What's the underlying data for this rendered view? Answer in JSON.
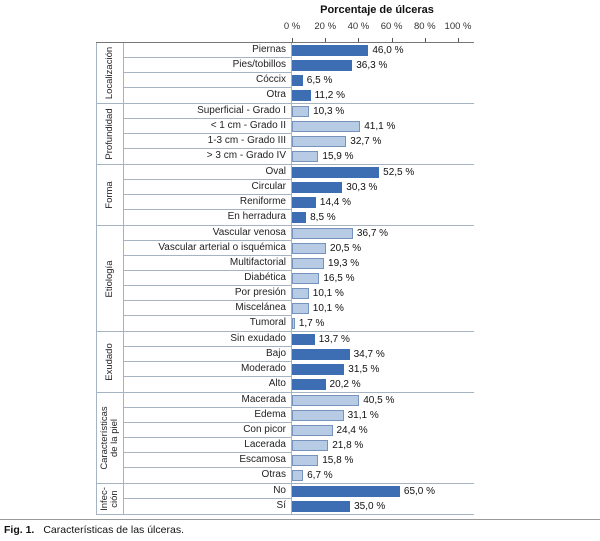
{
  "figure": {
    "caption_prefix": "Fig. 1.",
    "caption_text": "Características de las úlceras."
  },
  "chart_data": {
    "type": "bar",
    "orientation": "horizontal",
    "title": "Porcentaje de úlceras",
    "xlabel": "Porcentaje de úlceras",
    "xlim": [
      0,
      100
    ],
    "grid": false,
    "legend_position": "none",
    "x_ticks": [
      {
        "value": 0,
        "label": "0 %"
      },
      {
        "value": 20,
        "label": "20 %"
      },
      {
        "value": 40,
        "label": "40 %"
      },
      {
        "value": 60,
        "label": "60 %"
      },
      {
        "value": 80,
        "label": "80 %"
      },
      {
        "value": 100,
        "label": "100 %"
      }
    ],
    "colors": {
      "bar_dark": "#3d6eb4",
      "bar_light": "#b7cbe5",
      "bar_light_border": "#7593bd",
      "grid_border": "#a6b3c0"
    },
    "groups": [
      {
        "name": "Localización",
        "name_lines": [
          "Localización"
        ],
        "shade": "dark",
        "items": [
          {
            "label": "Piernas",
            "value": 46.0,
            "value_label": "46,0 %"
          },
          {
            "label": "Pies/tobillos",
            "value": 36.3,
            "value_label": "36,3 %"
          },
          {
            "label": "Cóccix",
            "value": 6.5,
            "value_label": "6,5 %"
          },
          {
            "label": "Otra",
            "value": 11.2,
            "value_label": "11,2 %"
          }
        ]
      },
      {
        "name": "Profundidad",
        "name_lines": [
          "Profundidad"
        ],
        "shade": "light",
        "items": [
          {
            "label": "Superficial - Grado I",
            "value": 10.3,
            "value_label": "10,3 %"
          },
          {
            "label": "< 1 cm - Grado II",
            "value": 41.1,
            "value_label": "41,1 %"
          },
          {
            "label": "1-3 cm - Grado III",
            "value": 32.7,
            "value_label": "32,7 %"
          },
          {
            "label": "> 3 cm - Grado IV",
            "value": 15.9,
            "value_label": "15,9 %"
          }
        ]
      },
      {
        "name": "Forma",
        "name_lines": [
          "Forma"
        ],
        "shade": "dark",
        "items": [
          {
            "label": "Oval",
            "value": 52.5,
            "value_label": "52,5 %"
          },
          {
            "label": "Circular",
            "value": 30.3,
            "value_label": "30,3 %"
          },
          {
            "label": "Reniforme",
            "value": 14.4,
            "value_label": "14,4 %"
          },
          {
            "label": "En herradura",
            "value": 8.5,
            "value_label": "8,5 %"
          }
        ]
      },
      {
        "name": "Etiología",
        "name_lines": [
          "Etiología"
        ],
        "shade": "light",
        "items": [
          {
            "label": "Vascular venosa",
            "value": 36.7,
            "value_label": "36,7 %"
          },
          {
            "label": "Vascular arterial o isquémica",
            "value": 20.5,
            "value_label": "20,5 %"
          },
          {
            "label": "Multifactorial",
            "value": 19.3,
            "value_label": "19,3 %"
          },
          {
            "label": "Diabética",
            "value": 16.5,
            "value_label": "16,5 %"
          },
          {
            "label": "Por presión",
            "value": 10.1,
            "value_label": "10,1 %"
          },
          {
            "label": "Miscelánea",
            "value": 10.1,
            "value_label": "10,1 %"
          },
          {
            "label": "Tumoral",
            "value": 1.7,
            "value_label": "1,7 %"
          }
        ]
      },
      {
        "name": "Exudado",
        "name_lines": [
          "Exudado"
        ],
        "shade": "dark",
        "items": [
          {
            "label": "Sin exudado",
            "value": 13.7,
            "value_label": "13,7 %"
          },
          {
            "label": "Bajo",
            "value": 34.7,
            "value_label": "34,7 %"
          },
          {
            "label": "Moderado",
            "value": 31.5,
            "value_label": "31,5 %"
          },
          {
            "label": "Alto",
            "value": 20.2,
            "value_label": "20,2 %"
          }
        ]
      },
      {
        "name": "Características de la piel",
        "name_lines": [
          "Características",
          "de la piel"
        ],
        "shade": "light",
        "items": [
          {
            "label": "Macerada",
            "value": 40.5,
            "value_label": "40,5 %"
          },
          {
            "label": "Edema",
            "value": 31.1,
            "value_label": "31,1 %"
          },
          {
            "label": "Con picor",
            "value": 24.4,
            "value_label": "24,4 %"
          },
          {
            "label": "Lacerada",
            "value": 21.8,
            "value_label": "21,8 %"
          },
          {
            "label": "Escamosa",
            "value": 15.8,
            "value_label": "15,8 %"
          },
          {
            "label": "Otras",
            "value": 6.7,
            "value_label": "6,7 %"
          }
        ]
      },
      {
        "name": "Infección",
        "name_lines": [
          "Infec-",
          "ción"
        ],
        "shade": "dark",
        "items": [
          {
            "label": "No",
            "value": 65.0,
            "value_label": "65,0 %"
          },
          {
            "label": "Sí",
            "value": 35.0,
            "value_label": "35,0 %"
          }
        ]
      }
    ]
  }
}
